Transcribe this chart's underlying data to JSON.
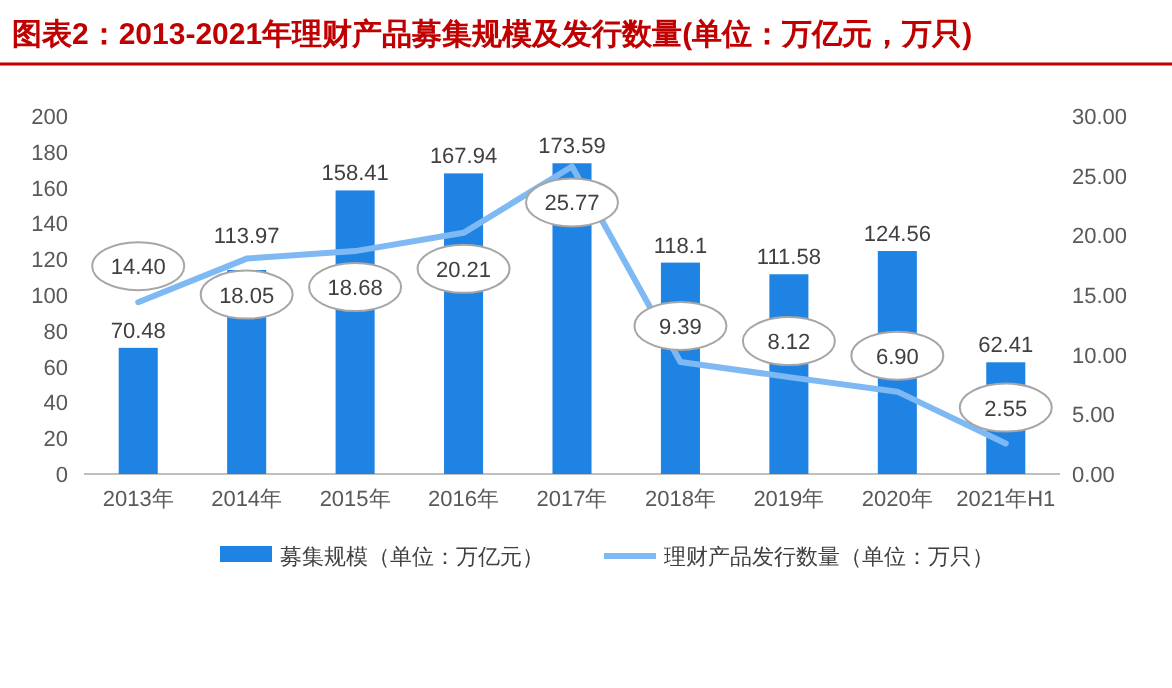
{
  "chart_data": {
    "type": "bar",
    "title": "图表2：2013-2021年理财产品募集规模及发行数量(单位：万亿元，万只)",
    "categories": [
      "2013年",
      "2014年",
      "2015年",
      "2016年",
      "2017年",
      "2018年",
      "2019年",
      "2020年",
      "2021年H1"
    ],
    "series": [
      {
        "name": "募集规模（单位：万亿元）",
        "color": "#1f83e4",
        "values": [
          70.48,
          113.97,
          158.41,
          167.94,
          173.59,
          118.1,
          111.58,
          124.56,
          62.41
        ],
        "value_labels": [
          "70.48",
          "113.97",
          "158.41",
          "167.94",
          "173.59",
          "118.1",
          "111.58",
          "124.56",
          "62.41"
        ]
      },
      {
        "name": "理财产品发行数量（单位：万只）",
        "type": "line",
        "axis": "y2",
        "color": "#7fb9f3",
        "values": [
          14.4,
          18.05,
          18.68,
          20.21,
          25.77,
          9.39,
          8.12,
          6.9,
          2.55
        ],
        "value_labels": [
          "14.40",
          "18.05",
          "18.68",
          "20.21",
          "25.77",
          "9.39",
          "8.12",
          "6.90",
          "2.55"
        ]
      }
    ],
    "ylim": [
      0,
      200
    ],
    "yticks": [
      0,
      20,
      40,
      60,
      80,
      100,
      120,
      140,
      160,
      180,
      200
    ],
    "y2lim": [
      0,
      30
    ],
    "y2ticks": [
      {
        "value": 0,
        "label": "0.00"
      },
      {
        "value": 5,
        "label": "5.00"
      },
      {
        "value": 10,
        "label": "10.00"
      },
      {
        "value": 15,
        "label": "15.00"
      },
      {
        "value": 20,
        "label": "20.00"
      },
      {
        "value": 25,
        "label": "25.00"
      },
      {
        "value": 30,
        "label": "30.00"
      }
    ],
    "grid": false,
    "legend": "bottom"
  }
}
